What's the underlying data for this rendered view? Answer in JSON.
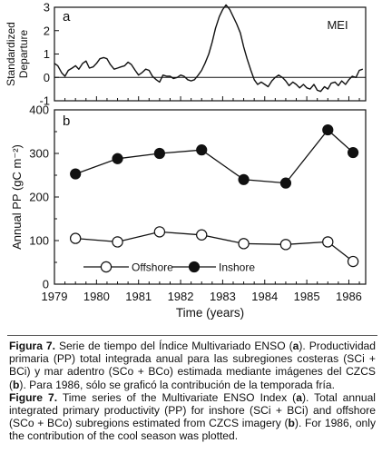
{
  "chart_data": [
    {
      "type": "line",
      "panel_label": "a",
      "series_label": "MEI",
      "ylabel": "Standardized Departure",
      "xlabel": "",
      "xlim": [
        1979,
        1986.4
      ],
      "ylim": [
        -1,
        3
      ],
      "yticks": [
        "-1",
        "0",
        "1",
        "2",
        "3"
      ],
      "reference_line": 0,
      "x": [
        1979.0,
        1979.08,
        1979.17,
        1979.25,
        1979.33,
        1979.42,
        1979.5,
        1979.58,
        1979.67,
        1979.75,
        1979.83,
        1979.92,
        1980.0,
        1980.08,
        1980.17,
        1980.25,
        1980.33,
        1980.42,
        1980.5,
        1980.58,
        1980.67,
        1980.75,
        1980.83,
        1980.92,
        1981.0,
        1981.08,
        1981.17,
        1981.25,
        1981.33,
        1981.42,
        1981.5,
        1981.58,
        1981.67,
        1981.75,
        1981.83,
        1981.92,
        1982.0,
        1982.08,
        1982.17,
        1982.25,
        1982.33,
        1982.42,
        1982.5,
        1982.58,
        1982.67,
        1982.75,
        1982.83,
        1982.92,
        1983.0,
        1983.08,
        1983.17,
        1983.25,
        1983.33,
        1983.42,
        1983.5,
        1983.58,
        1983.67,
        1983.75,
        1983.83,
        1983.92,
        1984.0,
        1984.08,
        1984.17,
        1984.25,
        1984.33,
        1984.42,
        1984.5,
        1984.58,
        1984.67,
        1984.75,
        1984.83,
        1984.92,
        1985.0,
        1985.08,
        1985.17,
        1985.25,
        1985.33,
        1985.42,
        1985.5,
        1985.58,
        1985.67,
        1985.75,
        1985.83,
        1985.92,
        1986.0,
        1986.08,
        1986.17,
        1986.25,
        1986.33
      ],
      "values": [
        0.6,
        0.5,
        0.2,
        0.05,
        0.3,
        0.4,
        0.5,
        0.35,
        0.6,
        0.7,
        0.4,
        0.45,
        0.6,
        0.8,
        0.85,
        0.8,
        0.55,
        0.35,
        0.4,
        0.45,
        0.5,
        0.65,
        0.55,
        0.3,
        0.1,
        0.2,
        0.35,
        0.3,
        0.05,
        -0.1,
        -0.2,
        0.1,
        0.05,
        0.05,
        -0.05,
        0.0,
        0.1,
        0.05,
        -0.1,
        -0.15,
        -0.1,
        0.1,
        0.3,
        0.6,
        1.0,
        1.5,
        2.1,
        2.6,
        2.9,
        3.1,
        2.9,
        2.6,
        2.3,
        1.9,
        1.3,
        0.8,
        0.3,
        -0.1,
        -0.3,
        -0.2,
        -0.3,
        -0.4,
        -0.15,
        0.0,
        0.1,
        0.0,
        -0.15,
        -0.35,
        -0.2,
        -0.3,
        -0.45,
        -0.3,
        -0.45,
        -0.5,
        -0.3,
        -0.55,
        -0.6,
        -0.4,
        -0.5,
        -0.25,
        -0.2,
        -0.35,
        -0.15,
        -0.3,
        -0.1,
        0.05,
        0.0,
        0.3,
        0.35
      ]
    },
    {
      "type": "line",
      "panel_label": "b",
      "ylabel": "Annual PP (gC m⁻²)",
      "xlabel": "Time (years)",
      "xlim": [
        1979,
        1986.4
      ],
      "ylim": [
        0,
        400
      ],
      "yticks": [
        "0",
        "100",
        "200",
        "300",
        "400"
      ],
      "xticks": [
        "1979",
        "1980",
        "1981",
        "1982",
        "1983",
        "1984",
        "1985",
        "1986"
      ],
      "x": [
        1979.5,
        1980.5,
        1981.5,
        1982.5,
        1983.5,
        1984.5,
        1985.5,
        1986.1
      ],
      "series": [
        {
          "name": "Inshore",
          "marker": "filled",
          "values": [
            253,
            288,
            300,
            308,
            240,
            232,
            354,
            302
          ]
        },
        {
          "name": "Offshore",
          "marker": "open",
          "values": [
            105,
            97,
            120,
            113,
            93,
            91,
            97,
            52
          ]
        }
      ],
      "legend": "bottom"
    }
  ],
  "caption": {
    "es_label": "Figura 7.",
    "es_text_1": " Serie de tiempo del Índice Multivariado ENSO (",
    "es_a": "a",
    "es_text_2": "). Productividad primaria (PP) total integrada anual para las subregiones costeras (SCi + BCi) y mar adentro (SCo + BCo) estimada mediante imágenes del CZCS (",
    "es_b": "b",
    "es_text_3": "). Para 1986, sólo se graficó la contribución de la temporada fría.",
    "en_label": "Figure 7.",
    "en_text_1": " Time series of the Multivariate ENSO Index (",
    "en_a": "a",
    "en_text_2": "). Total annual integrated primary productivity (PP) for inshore (SCi + BCi) and offshore (SCo + BCo) subregions estimated from CZCS imagery (",
    "en_b": "b",
    "en_text_3": "). For 1986, only the contribution of the cool season was plotted."
  }
}
